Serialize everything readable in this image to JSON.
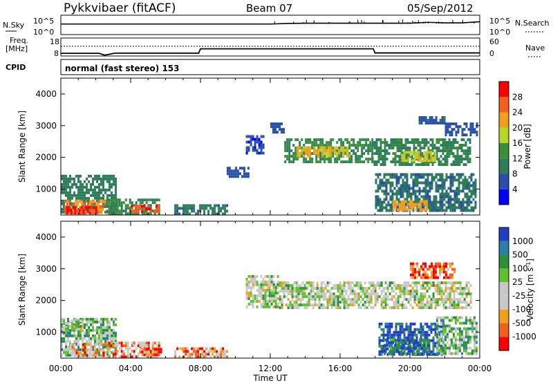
{
  "header": {
    "station": "Pykkvibaer (fitACF)",
    "beam": "Beam 07",
    "date": "05/Sep/2012"
  },
  "sky_panel": {
    "left_label": "N.Sky",
    "right_label": "N.Search",
    "ytick_top": "10^5",
    "ytick_bottom": "10^0"
  },
  "freq_panel": {
    "left_label_1": "Freq.",
    "left_label_2": "[MHz]",
    "right_label": "Nave",
    "left_ticks": [
      "18",
      "8"
    ],
    "right_ticks": [
      "60",
      "0"
    ]
  },
  "cpid_panel": {
    "label": "CPID",
    "text": "normal (fast stereo) 153"
  },
  "colors": {
    "power_scale": [
      "#0000ff",
      "#2a4fa8",
      "#2e7d5a",
      "#3a8f3a",
      "#b7d62a",
      "#f0a020",
      "#f06020",
      "#ff0000"
    ],
    "velocity_scale": [
      "#2040c0",
      "#2a7fa8",
      "#2e8f3a",
      "#60c030",
      "#c8c8c8",
      "#c8c8c8",
      "#f0a020",
      "#f06020",
      "#ff0000"
    ]
  },
  "chart_data": [
    {
      "type": "heatmap",
      "name": "power",
      "ylabel": "Slant Range [km]",
      "ylim": [
        180,
        4500
      ],
      "yticks": [
        "1000",
        "2000",
        "3000",
        "4000"
      ],
      "xlim": [
        0,
        24
      ],
      "colorbar": {
        "label": "Power [dB]",
        "ticks": [
          "4",
          "8",
          "12",
          "16",
          "20",
          "24",
          "28"
        ],
        "range": [
          0,
          32
        ]
      },
      "regions": [
        {
          "t0": 0.0,
          "t1": 3.2,
          "r0": 250,
          "r1": 1450,
          "v": 10
        },
        {
          "t0": 0.2,
          "t1": 2.6,
          "r0": 260,
          "r1": 650,
          "v": 24
        },
        {
          "t0": 0.3,
          "t1": 2.0,
          "r0": 260,
          "r1": 460,
          "v": 29
        },
        {
          "t0": 2.6,
          "t1": 5.6,
          "r0": 250,
          "r1": 700,
          "v": 12
        },
        {
          "t0": 4.0,
          "t1": 5.6,
          "r0": 260,
          "r1": 500,
          "v": 27
        },
        {
          "t0": 6.5,
          "t1": 9.5,
          "r0": 250,
          "r1": 520,
          "v": 9
        },
        {
          "t0": 9.5,
          "t1": 10.8,
          "r0": 1400,
          "r1": 1700,
          "v": 6
        },
        {
          "t0": 10.6,
          "t1": 11.6,
          "r0": 2100,
          "r1": 2700,
          "v": 5
        },
        {
          "t0": 12.0,
          "t1": 12.8,
          "r0": 2800,
          "r1": 3100,
          "v": 6
        },
        {
          "t0": 12.8,
          "t1": 17.8,
          "r0": 1900,
          "r1": 2600,
          "v": 12
        },
        {
          "t0": 13.5,
          "t1": 16.5,
          "r0": 2050,
          "r1": 2350,
          "v": 20
        },
        {
          "t0": 17.8,
          "t1": 23.5,
          "r0": 1800,
          "r1": 2600,
          "v": 11
        },
        {
          "t0": 19.5,
          "t1": 21.5,
          "r0": 1900,
          "r1": 2200,
          "v": 19
        },
        {
          "t0": 18.0,
          "t1": 23.8,
          "r0": 300,
          "r1": 1500,
          "v": 9
        },
        {
          "t0": 19.0,
          "t1": 21.0,
          "r0": 320,
          "r1": 650,
          "v": 22
        },
        {
          "t0": 22.0,
          "t1": 23.8,
          "r0": 2700,
          "r1": 3100,
          "v": 6
        },
        {
          "t0": 20.5,
          "t1": 22.0,
          "r0": 3100,
          "r1": 3300,
          "v": 7
        }
      ]
    },
    {
      "type": "heatmap",
      "name": "velocity",
      "ylabel": "Slant Range [km]",
      "ylim": [
        180,
        4500
      ],
      "yticks": [
        "1000",
        "2000",
        "3000",
        "4000"
      ],
      "xlim": [
        0,
        24
      ],
      "xticks": [
        "00:00",
        "04:00",
        "08:00",
        "12:00",
        "16:00",
        "20:00",
        "00:00"
      ],
      "xlabel": "Time UT",
      "colorbar": {
        "label": "Velocity [m s",
        "label_sup": "-1",
        "label_end": "]",
        "ticks": [
          "1000",
          "500",
          "100",
          "25",
          "-25",
          "-100",
          "-500",
          "-1000"
        ]
      },
      "regions": [
        {
          "t0": 0.0,
          "t1": 3.2,
          "r0": 250,
          "r1": 1450,
          "v": 3
        },
        {
          "t0": 0.5,
          "t1": 2.5,
          "r0": 260,
          "r1": 650,
          "v": 6
        },
        {
          "t0": 2.6,
          "t1": 5.6,
          "r0": 250,
          "r1": 700,
          "v": 6
        },
        {
          "t0": 4.5,
          "t1": 5.8,
          "r0": 260,
          "r1": 500,
          "v": 7
        },
        {
          "t0": 6.5,
          "t1": 9.5,
          "r0": 250,
          "r1": 520,
          "v": 6
        },
        {
          "t0": 10.6,
          "t1": 12.5,
          "r0": 1800,
          "r1": 2800,
          "v": 4
        },
        {
          "t0": 12.5,
          "t1": 23.5,
          "r0": 1800,
          "r1": 2600,
          "v": 4
        },
        {
          "t0": 18.2,
          "t1": 21.8,
          "r0": 300,
          "r1": 1300,
          "v": 0
        },
        {
          "t0": 18.5,
          "t1": 21.0,
          "r0": 300,
          "r1": 800,
          "v": 1
        },
        {
          "t0": 21.5,
          "t1": 23.8,
          "r0": 300,
          "r1": 1500,
          "v": 3
        },
        {
          "t0": 20.0,
          "t1": 22.5,
          "r0": 2700,
          "r1": 3200,
          "v": 7
        },
        {
          "t0": 0.0,
          "t1": 1.2,
          "r0": 1100,
          "r1": 1400,
          "v": 4
        }
      ]
    },
    {
      "type": "line",
      "name": "sky_noise",
      "xlim": [
        0,
        24
      ],
      "x": [
        0,
        4,
        8,
        12,
        13,
        14,
        16,
        18,
        20,
        21,
        22,
        23,
        24
      ],
      "y": [
        0.55,
        0.55,
        0.55,
        0.55,
        0.6,
        0.62,
        0.62,
        0.62,
        0.62,
        0.7,
        0.65,
        0.65,
        0.75
      ]
    },
    {
      "type": "line",
      "name": "frequency",
      "xlim": [
        0,
        24
      ],
      "ylim": [
        8,
        18
      ],
      "x": [
        0,
        2.2,
        2.5,
        2.8,
        3.1,
        7.9,
        8.0,
        17.9,
        18.0,
        24
      ],
      "y": [
        9.5,
        9.5,
        8.5,
        9.0,
        9.6,
        9.6,
        12.0,
        12.0,
        9.7,
        9.7
      ]
    }
  ]
}
